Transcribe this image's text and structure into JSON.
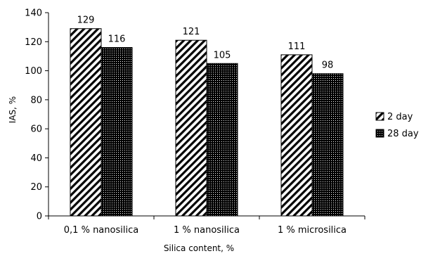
{
  "chart_data": {
    "type": "bar",
    "categories": [
      "0,1 % nanosilica",
      "1 % nanosilica",
      "1 %  microsilica"
    ],
    "series": [
      {
        "name": "2 day",
        "values": [
          129,
          121,
          111
        ],
        "pattern": "diagonal-hatch"
      },
      {
        "name": "28 day",
        "values": [
          116,
          105,
          98
        ],
        "pattern": "dense-dots"
      }
    ],
    "xlabel": "Silica content, %",
    "ylabel": "IAS, %",
    "ylim": [
      0,
      140
    ],
    "yticks": [
      0,
      20,
      40,
      60,
      80,
      100,
      120,
      140
    ],
    "grid": false,
    "legend_position": "right",
    "data_labels": true,
    "colors": {
      "stroke": "#000000",
      "hatch": "#000000",
      "background": "#ffffff"
    }
  }
}
